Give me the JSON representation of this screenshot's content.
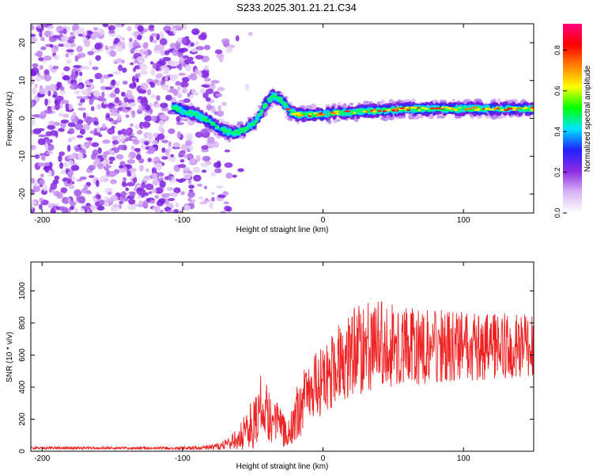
{
  "title": "S233.2025.301.21.21.C34",
  "chart_data": [
    {
      "type": "heatmap",
      "name": "spectrogram",
      "xlabel": "Height of straight line (km)",
      "ylabel": "Frequency (Hz)",
      "xlim": [
        -208,
        150
      ],
      "ylim": [
        -25,
        25
      ],
      "xticks": [
        -200,
        -100,
        0,
        100
      ],
      "xtick_labels": [
        "-200",
        "-100",
        "0",
        "100"
      ],
      "yticks": [
        -20,
        -10,
        0,
        10,
        20
      ],
      "ytick_labels": [
        "-20",
        "-10",
        "0",
        "10",
        "20"
      ],
      "colorbar": {
        "label": "Normalized spectral amplitude",
        "range": [
          0,
          0.93
        ],
        "ticks": [
          0.0,
          0.2,
          0.4,
          0.6,
          0.8
        ],
        "tick_labels": [
          "0.0",
          "0.2",
          "0.4",
          "0.6",
          "0.8"
        ],
        "colors": [
          "#ffffff",
          "#d9b3f5",
          "#8a2be2",
          "#2020ff",
          "#00e5ff",
          "#00ff00",
          "#ffff00",
          "#ff8000",
          "#ff0000",
          "#ff0080"
        ]
      },
      "ridge": {
        "x": [
          -107,
          -100,
          -90,
          -80,
          -72,
          -64,
          -56,
          -48,
          -42,
          -36,
          -30,
          -24,
          -18,
          -10,
          0,
          10,
          20,
          30,
          40,
          60,
          80,
          100,
          120,
          150
        ],
        "y": [
          3,
          2,
          1,
          -1,
          -3,
          -4,
          -3,
          -1,
          3,
          6,
          5,
          2,
          1,
          1,
          1,
          1.5,
          1.5,
          2,
          2,
          2.5,
          2.5,
          2.5,
          2.5,
          2.5
        ]
      },
      "noise_region": [
        -208,
        -90
      ]
    },
    {
      "type": "line",
      "name": "snr",
      "xlabel": "Height of straight line (km)",
      "ylabel": "SNR (10 * v/v)",
      "xlim": [
        -208,
        150
      ],
      "ylim": [
        0,
        1180
      ],
      "xticks": [
        -200,
        -100,
        0,
        100
      ],
      "xtick_labels": [
        "-200",
        "-100",
        "0",
        "100"
      ],
      "yticks": [
        0,
        200,
        400,
        600,
        800,
        1000
      ],
      "ytick_labels": [
        "0",
        "200",
        "400",
        "600",
        "800",
        "1000"
      ],
      "color": "#ee2222",
      "envelope": {
        "x": [
          -208,
          -100,
          -80,
          -70,
          -60,
          -50,
          -45,
          -40,
          -35,
          -30,
          -25,
          -20,
          -15,
          -10,
          0,
          10,
          20,
          30,
          40,
          50,
          60,
          70,
          80,
          100,
          120,
          150
        ],
        "mean": [
          20,
          20,
          25,
          40,
          80,
          180,
          280,
          250,
          200,
          150,
          100,
          200,
          300,
          380,
          430,
          550,
          620,
          650,
          660,
          660,
          650,
          650,
          660,
          650,
          660,
          650
        ],
        "amplitude": [
          8,
          10,
          15,
          30,
          70,
          170,
          200,
          180,
          150,
          120,
          90,
          170,
          190,
          200,
          220,
          250,
          280,
          290,
          280,
          260,
          250,
          240,
          230,
          220,
          210,
          200
        ]
      }
    }
  ]
}
